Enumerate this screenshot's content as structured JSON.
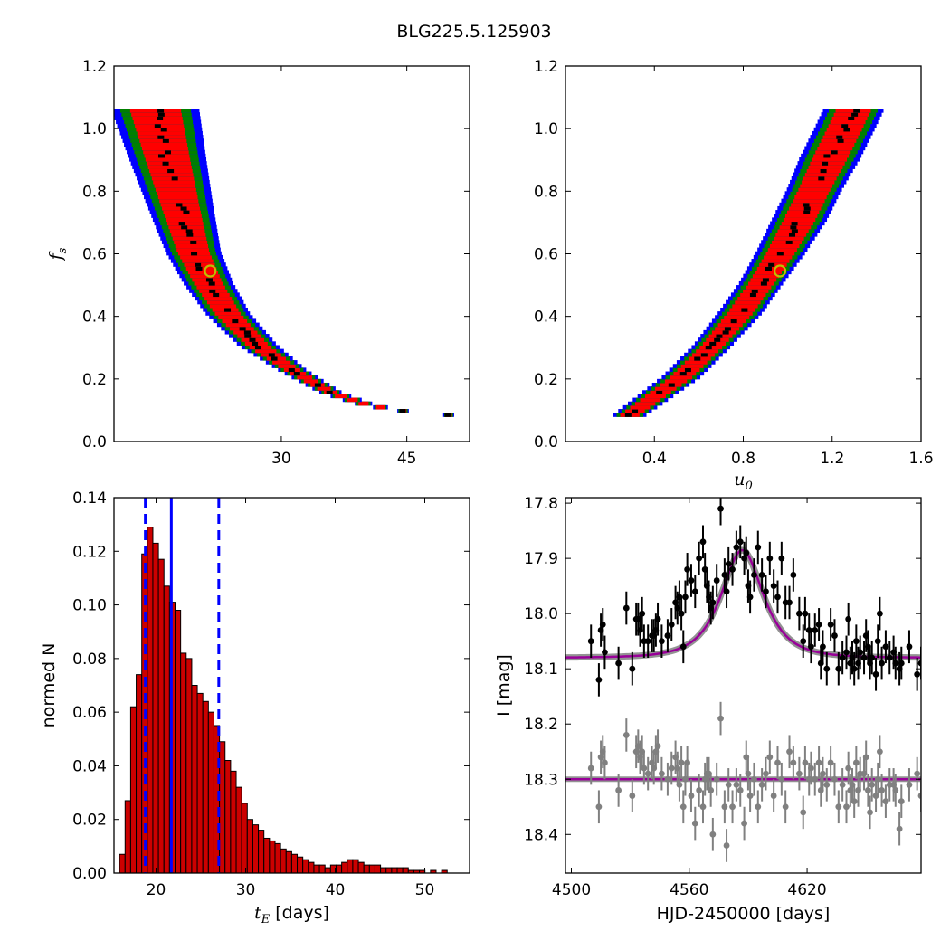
{
  "title": "BLG225.5.125903",
  "chart_data": [
    {
      "type": "heatmap",
      "panel": "top-left",
      "description_levels": [
        "black",
        "red",
        "green",
        "blue"
      ],
      "xlabel": "",
      "ylabel": {
        "base": "f",
        "sub": "s"
      },
      "xlim": [
        10,
        52.5
      ],
      "ylim": [
        0.0,
        1.2
      ],
      "xticks": [
        30,
        45
      ],
      "xtick_labels": [
        "30",
        "45"
      ],
      "yticks": [
        0.0,
        0.2,
        0.4,
        0.6,
        0.8,
        1.0,
        1.2
      ],
      "ytick_labels": [
        "0.0",
        "0.2",
        "0.4",
        "0.6",
        "0.8",
        "1.0",
        "1.2"
      ],
      "curve": {
        "y": [
          1.06,
          0.9,
          0.75,
          0.6,
          0.5,
          0.4,
          0.3,
          0.22,
          0.15,
          0.11,
          0.09,
          0.08
        ],
        "x": [
          14.9,
          16.4,
          17.9,
          19.5,
          21.3,
          23.7,
          27.3,
          31.5,
          36.0,
          40.5,
          45.0,
          50.0
        ],
        "half_width": [
          0.08,
          0.07,
          0.06,
          0.05,
          0.045,
          0.04,
          0.035,
          0.025,
          0.02,
          0.015,
          0.01,
          0.01
        ]
      },
      "best_fit": {
        "x": 21.5,
        "y": 0.545
      },
      "colors": {
        "core": "#000000",
        "inner": "#ff0000",
        "middle": "#008000",
        "outer": "#0000ff",
        "marker": "#bfbf00"
      }
    },
    {
      "type": "heatmap",
      "panel": "top-right",
      "xlabel": {
        "base": "u",
        "sub": "0"
      },
      "ylabel": "",
      "xlim": [
        0.0,
        1.6
      ],
      "ylim": [
        0.0,
        1.2
      ],
      "xticks": [
        0.4,
        0.8,
        1.2,
        1.6
      ],
      "xtick_labels": [
        "0.4",
        "0.8",
        "1.2",
        "1.6"
      ],
      "yticks": [
        0.0,
        0.2,
        0.4,
        0.6,
        0.8,
        1.0,
        1.2
      ],
      "ytick_labels": [
        "0.0",
        "0.2",
        "0.4",
        "0.6",
        "0.8",
        "1.0",
        "1.2"
      ],
      "curve": {
        "y": [
          0.08,
          0.2,
          0.3,
          0.4,
          0.5,
          0.6,
          0.7,
          0.8,
          0.9,
          1.0,
          1.06
        ],
        "x": [
          0.29,
          0.52,
          0.66,
          0.78,
          0.88,
          0.97,
          1.05,
          1.12,
          1.19,
          1.26,
          1.3
        ],
        "half_width": [
          0.03,
          0.035,
          0.035,
          0.04,
          0.04,
          0.045,
          0.05,
          0.05,
          0.055,
          0.055,
          0.055
        ]
      },
      "best_fit": {
        "x": 0.965,
        "y": 0.545
      },
      "colors": {
        "core": "#000000",
        "inner": "#ff0000",
        "middle": "#008000",
        "outer": "#0000ff",
        "marker": "#bfbf00"
      }
    },
    {
      "type": "bar",
      "panel": "bottom-left",
      "xlabel": {
        "base": "t",
        "sub": "E",
        "unit": " [days]"
      },
      "ylabel": "normed N",
      "xlim": [
        15.3,
        55
      ],
      "ylim": [
        0.0,
        0.14
      ],
      "xticks": [
        20,
        30,
        40,
        50
      ],
      "xtick_labels": [
        "20",
        "30",
        "40",
        "50"
      ],
      "yticks": [
        0.0,
        0.02,
        0.04,
        0.06,
        0.08,
        0.1,
        0.12,
        0.14
      ],
      "ytick_labels": [
        "0.00",
        "0.02",
        "0.04",
        "0.06",
        "0.08",
        "0.10",
        "0.12",
        "0.14"
      ],
      "bin_start": 15.3,
      "bin_width": 0.62,
      "values": [
        0.0,
        0.007,
        0.027,
        0.062,
        0.074,
        0.119,
        0.129,
        0.123,
        0.117,
        0.107,
        0.101,
        0.098,
        0.082,
        0.08,
        0.07,
        0.067,
        0.064,
        0.06,
        0.055,
        0.049,
        0.042,
        0.038,
        0.032,
        0.026,
        0.02,
        0.018,
        0.016,
        0.013,
        0.012,
        0.011,
        0.009,
        0.008,
        0.007,
        0.006,
        0.005,
        0.004,
        0.003,
        0.003,
        0.002,
        0.003,
        0.003,
        0.004,
        0.005,
        0.005,
        0.004,
        0.003,
        0.003,
        0.003,
        0.002,
        0.002,
        0.002,
        0.002,
        0.002,
        0.001,
        0.001,
        0.001,
        0.0,
        0.001,
        0.0,
        0.001,
        0.0,
        0.0,
        0.0,
        0.0
      ],
      "median_line": 21.7,
      "interval_lines": [
        18.8,
        27.0
      ],
      "colors": {
        "bar": "#cc0000",
        "edge": "#000000",
        "lines": "#0000ff"
      }
    },
    {
      "type": "scatter",
      "panel": "bottom-right",
      "xlabel": "HJD-2450000 [days]",
      "ylabel": "I [mag]",
      "xlim": [
        4497,
        4678
      ],
      "ylim": [
        18.47,
        17.79
      ],
      "y_inverted": true,
      "xticks": [
        4500,
        4560,
        4620
      ],
      "xtick_labels": [
        "4500",
        "4560",
        "4620"
      ],
      "yticks": [
        17.8,
        17.9,
        18.0,
        18.1,
        18.2,
        18.3,
        18.4
      ],
      "ytick_labels": [
        "17.8",
        "17.9",
        "18.0",
        "18.1",
        "18.2",
        "18.3",
        "18.4"
      ],
      "model": {
        "baseline": 18.08,
        "peak": 17.885,
        "t0": 4587,
        "tE": 14,
        "u0": 0.97
      },
      "residual_baseline": 18.3,
      "series": [
        {
          "x": [
            4510,
            4514,
            4515,
            4516,
            4517,
            4524,
            4528,
            4531,
            4533,
            4534,
            4535,
            4536,
            4537,
            4539,
            4541,
            4542,
            4543,
            4544,
            4546,
            4549,
            4551,
            4553,
            4554,
            4555,
            4556,
            4557,
            4558,
            4559,
            4561,
            4563,
            4565,
            4567,
            4568,
            4569,
            4570,
            4571,
            4572,
            4574,
            4576,
            4578,
            4579,
            4580,
            4582,
            4584,
            4586,
            4588,
            4589,
            4590,
            4591,
            4593,
            4595,
            4597,
            4599,
            4601,
            4603,
            4605,
            4607,
            4609,
            4611,
            4613,
            4616,
            4618,
            4619,
            4621,
            4622,
            4624,
            4626,
            4627,
            4628,
            4630,
            4632,
            4634,
            4636,
            4638,
            4640,
            4641,
            4642,
            4643,
            4644,
            4645,
            4646,
            4647,
            4649,
            4650,
            4651,
            4652,
            4653,
            4655,
            4656,
            4657,
            4658,
            4660,
            4662,
            4664,
            4665,
            4667,
            4668,
            4672,
            4676,
            4678
          ],
          "y": [
            18.05,
            18.12,
            18.03,
            18.02,
            18.07,
            18.09,
            17.99,
            18.1,
            18.01,
            18.01,
            18.03,
            18.0,
            18.05,
            18.05,
            18.04,
            18.04,
            18.03,
            18.01,
            18.05,
            18.04,
            18.02,
            17.98,
            17.99,
            17.97,
            18.0,
            18.06,
            17.97,
            17.92,
            17.94,
            17.96,
            17.9,
            17.87,
            17.92,
            17.95,
            17.97,
            17.99,
            17.98,
            17.94,
            17.81,
            17.93,
            17.96,
            17.91,
            17.92,
            17.88,
            17.87,
            17.9,
            17.89,
            17.95,
            17.97,
            17.93,
            17.88,
            17.93,
            17.96,
            17.9,
            17.95,
            17.97,
            17.9,
            17.98,
            17.98,
            17.93,
            18.0,
            18.05,
            18.0,
            18.03,
            18.06,
            18.03,
            18.02,
            18.09,
            18.06,
            18.1,
            18.02,
            18.04,
            18.1,
            18.08,
            18.07,
            18.01,
            18.09,
            18.08,
            18.1,
            18.05,
            18.09,
            18.07,
            18.08,
            18.04,
            18.06,
            18.09,
            18.08,
            18.11,
            18.05,
            18.0,
            18.09,
            18.06,
            18.08,
            18.07,
            18.09,
            18.1,
            18.09,
            18.06,
            18.11,
            18.09
          ],
          "err": [
            0.03,
            0.03,
            0.03,
            0.03,
            0.03,
            0.03,
            0.03,
            0.03,
            0.03,
            0.03,
            0.03,
            0.03,
            0.03,
            0.03,
            0.03,
            0.03,
            0.03,
            0.03,
            0.03,
            0.03,
            0.03,
            0.03,
            0.03,
            0.03,
            0.03,
            0.03,
            0.03,
            0.03,
            0.03,
            0.03,
            0.03,
            0.03,
            0.03,
            0.03,
            0.03,
            0.03,
            0.03,
            0.03,
            0.03,
            0.03,
            0.03,
            0.03,
            0.03,
            0.03,
            0.03,
            0.03,
            0.03,
            0.03,
            0.03,
            0.03,
            0.03,
            0.03,
            0.03,
            0.03,
            0.03,
            0.03,
            0.03,
            0.03,
            0.03,
            0.03,
            0.03,
            0.03,
            0.03,
            0.03,
            0.03,
            0.03,
            0.03,
            0.03,
            0.03,
            0.03,
            0.03,
            0.03,
            0.03,
            0.03,
            0.03,
            0.03,
            0.03,
            0.03,
            0.03,
            0.03,
            0.03,
            0.03,
            0.03,
            0.03,
            0.03,
            0.03,
            0.03,
            0.03,
            0.03,
            0.03,
            0.03,
            0.03,
            0.03,
            0.03,
            0.03,
            0.03,
            0.03,
            0.03,
            0.03,
            0.03
          ],
          "color": "#000000"
        },
        {
          "x": [
            4510,
            4514,
            4515,
            4516,
            4517,
            4524,
            4528,
            4531,
            4533,
            4534,
            4535,
            4536,
            4537,
            4539,
            4541,
            4542,
            4543,
            4544,
            4546,
            4549,
            4551,
            4553,
            4554,
            4555,
            4556,
            4557,
            4558,
            4559,
            4561,
            4563,
            4565,
            4567,
            4568,
            4569,
            4570,
            4571,
            4572,
            4574,
            4576,
            4578,
            4579,
            4580,
            4582,
            4584,
            4586,
            4588,
            4589,
            4590,
            4591,
            4593,
            4595,
            4597,
            4599,
            4601,
            4603,
            4605,
            4607,
            4609,
            4611,
            4613,
            4616,
            4618,
            4619,
            4621,
            4622,
            4624,
            4626,
            4627,
            4628,
            4630,
            4632,
            4634,
            4636,
            4638,
            4640,
            4641,
            4642,
            4643,
            4644,
            4645,
            4646,
            4647,
            4649,
            4650,
            4651,
            4652,
            4653,
            4655,
            4656,
            4657,
            4658,
            4660,
            4662,
            4664,
            4665,
            4667,
            4668,
            4672,
            4676,
            4678
          ],
          "y": [
            18.28,
            18.35,
            18.26,
            18.25,
            18.27,
            18.32,
            18.22,
            18.33,
            18.25,
            18.24,
            18.26,
            18.25,
            18.28,
            18.29,
            18.27,
            18.28,
            18.25,
            18.24,
            18.29,
            18.3,
            18.28,
            18.26,
            18.28,
            18.31,
            18.27,
            18.35,
            18.3,
            18.27,
            18.33,
            18.38,
            18.32,
            18.35,
            18.3,
            18.29,
            18.29,
            18.32,
            18.4,
            18.3,
            18.19,
            18.35,
            18.42,
            18.31,
            18.35,
            18.31,
            18.32,
            18.38,
            18.26,
            18.29,
            18.33,
            18.3,
            18.35,
            18.31,
            18.29,
            18.26,
            18.33,
            18.27,
            18.3,
            18.35,
            18.25,
            18.27,
            18.29,
            18.36,
            18.27,
            18.3,
            18.28,
            18.3,
            18.27,
            18.32,
            18.29,
            18.31,
            18.27,
            18.3,
            18.35,
            18.31,
            18.35,
            18.28,
            18.32,
            18.31,
            18.34,
            18.27,
            18.32,
            18.29,
            18.29,
            18.26,
            18.32,
            18.36,
            18.31,
            18.33,
            18.3,
            18.25,
            18.32,
            18.34,
            18.31,
            18.31,
            18.32,
            18.39,
            18.34,
            18.31,
            18.29,
            18.33
          ],
          "err": [
            0.03,
            0.03,
            0.03,
            0.03,
            0.03,
            0.03,
            0.03,
            0.03,
            0.03,
            0.03,
            0.03,
            0.03,
            0.03,
            0.03,
            0.03,
            0.03,
            0.03,
            0.03,
            0.03,
            0.03,
            0.03,
            0.03,
            0.03,
            0.03,
            0.03,
            0.03,
            0.03,
            0.03,
            0.03,
            0.03,
            0.03,
            0.03,
            0.03,
            0.03,
            0.03,
            0.03,
            0.03,
            0.03,
            0.03,
            0.03,
            0.03,
            0.03,
            0.03,
            0.03,
            0.03,
            0.03,
            0.03,
            0.03,
            0.03,
            0.03,
            0.03,
            0.03,
            0.03,
            0.03,
            0.03,
            0.03,
            0.03,
            0.03,
            0.03,
            0.03,
            0.03,
            0.03,
            0.03,
            0.03,
            0.03,
            0.03,
            0.03,
            0.03,
            0.03,
            0.03,
            0.03,
            0.03,
            0.03,
            0.03,
            0.03,
            0.03,
            0.03,
            0.03,
            0.03,
            0.03,
            0.03,
            0.03,
            0.03,
            0.03,
            0.03,
            0.03,
            0.03,
            0.03,
            0.03,
            0.03,
            0.03,
            0.03,
            0.03,
            0.03,
            0.03,
            0.03,
            0.03,
            0.03,
            0.03,
            0.03
          ],
          "color": "#808080"
        }
      ],
      "colors": {
        "model": "#990099",
        "model_band": "#808080"
      }
    }
  ]
}
